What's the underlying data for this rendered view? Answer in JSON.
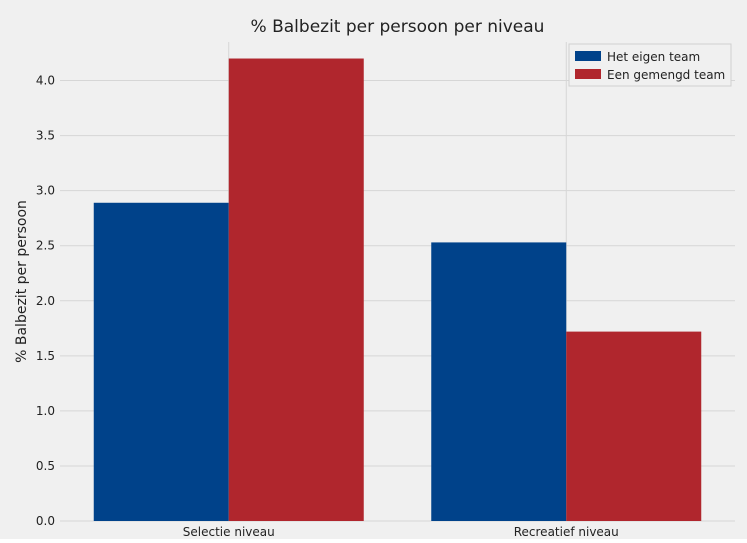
{
  "chart_data": {
    "type": "bar",
    "title": "% Balbezit per persoon per niveau",
    "xlabel": "",
    "ylabel": "% Balbezit per persoon",
    "categories": [
      "Selectie niveau",
      "Recreatief niveau"
    ],
    "series": [
      {
        "name": "Het eigen team",
        "values": [
          2.89,
          2.53
        ],
        "color": "#00428a"
      },
      {
        "name": "Een gemengd team",
        "values": [
          4.2,
          1.72
        ],
        "color": "#b0262d"
      }
    ],
    "ylim": [
      0,
      4.35
    ],
    "yticks": [
      "0.0",
      "0.5",
      "1.0",
      "1.5",
      "2.0",
      "2.5",
      "3.0",
      "3.5",
      "4.0"
    ],
    "grid": true,
    "legend_position": "top-right",
    "background_color": "#f0f0f0",
    "grid_color": "#d6d6d6"
  }
}
